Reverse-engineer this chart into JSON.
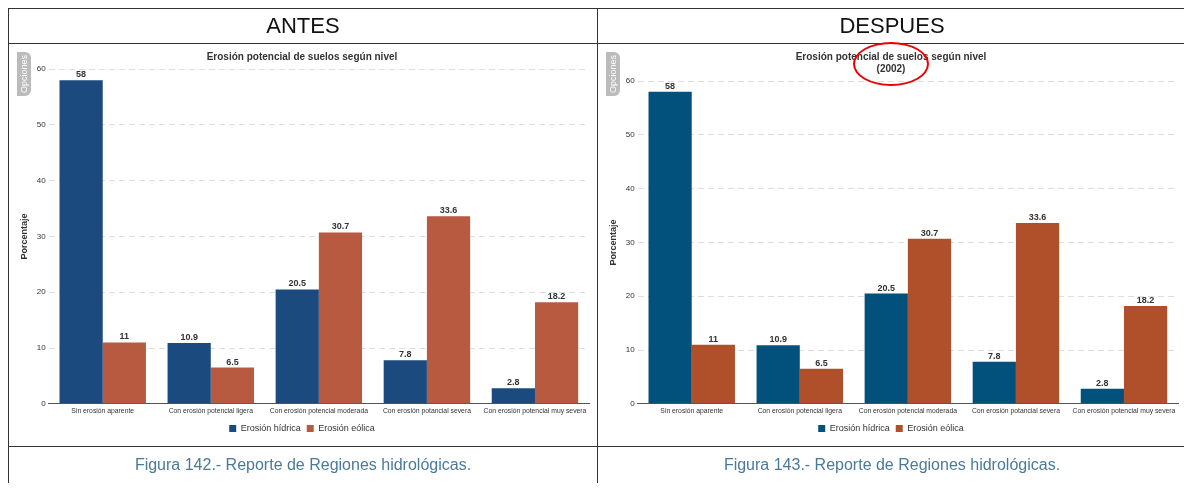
{
  "chart_data": [
    {
      "type": "bar",
      "title": "Erosión potencial de suelos según nivel",
      "ylabel": "Porcentaje",
      "categories": [
        "Sin erosión aparente",
        "Con erosión potencial ligera",
        "Con erosión potencial moderada",
        "Con erosión potancial severa",
        "Con erosión potencial muy severa"
      ],
      "series": [
        {
          "name": "Erosión hídrica",
          "color": "#1b4a7e",
          "values": [
            58,
            10.9,
            20.5,
            7.8,
            2.8
          ]
        },
        {
          "name": "Erosión eólica",
          "color": "#b85a40",
          "values": [
            11,
            6.5,
            30.7,
            33.6,
            18.2
          ]
        }
      ],
      "ylim": [
        0,
        60
      ],
      "yticks": [
        0,
        10,
        20,
        30,
        40,
        50,
        60
      ],
      "grid": "y",
      "legend": "bottom",
      "data_labels": true,
      "annotations": [
        "ANTES",
        "Opciones",
        "Figura 142.- Reporte de Regiones hidrológicas."
      ]
    },
    {
      "type": "bar",
      "title": "Erosión potencial de suelos según nivel",
      "subtitle": "(2002)",
      "ylabel": "Porcentaje",
      "categories": [
        "Sin erosión aparente",
        "Con erosión potencial ligera",
        "Con erosión potencial moderada",
        "Con erosión potancial severa",
        "Con erosión potencial muy severa"
      ],
      "series": [
        {
          "name": "Erosión hídrica",
          "color": "#02507c",
          "values": [
            58,
            10.9,
            20.5,
            7.8,
            2.8
          ]
        },
        {
          "name": "Erosión eólica",
          "color": "#b0502a",
          "values": [
            11,
            6.5,
            30.7,
            33.6,
            18.2
          ]
        }
      ],
      "ylim": [
        0,
        60
      ],
      "yticks": [
        0,
        10,
        20,
        30,
        40,
        50,
        60
      ],
      "grid": "y",
      "legend": "bottom",
      "data_labels": true,
      "annotations": [
        "DESPUES",
        "Opciones",
        "Figura 143.- Reporte de Regiones hidrológicas."
      ]
    }
  ]
}
